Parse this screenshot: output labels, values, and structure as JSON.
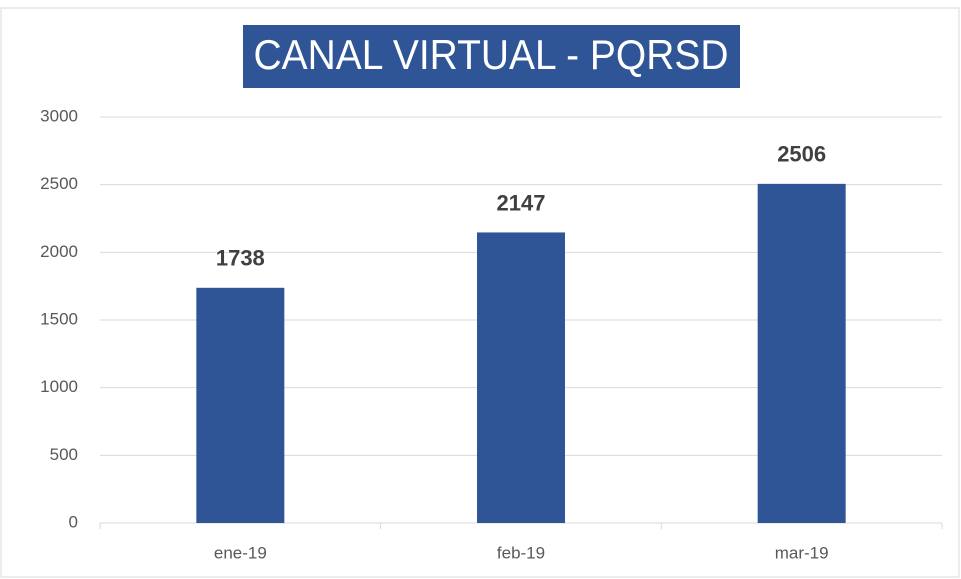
{
  "chart_data": {
    "type": "bar",
    "title": "CANAL VIRTUAL - PQRSD",
    "categories": [
      "ene-19",
      "feb-19",
      "mar-19"
    ],
    "values": [
      1738,
      2147,
      2506
    ],
    "color": "#2f5597",
    "ylim": [
      0,
      3000
    ],
    "yticks": [
      0,
      500,
      1000,
      1500,
      2000,
      2500,
      3000
    ],
    "grid": true
  }
}
